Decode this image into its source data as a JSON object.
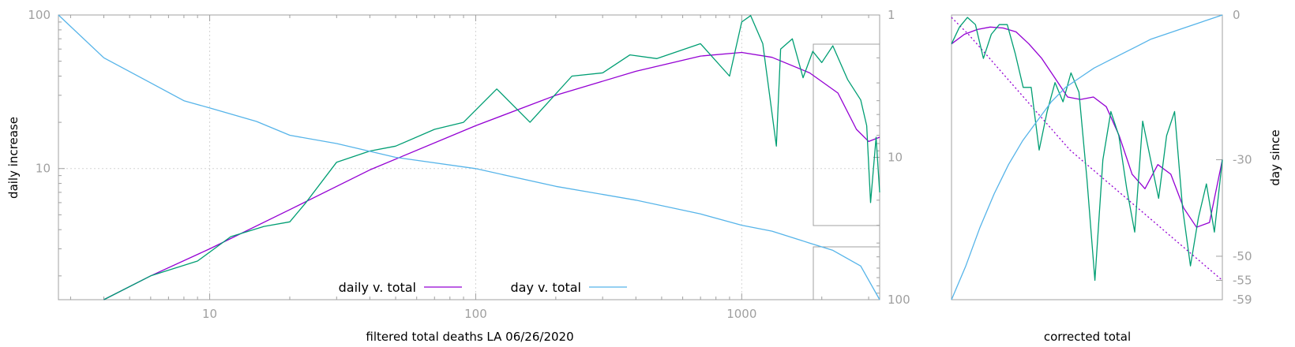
{
  "chart_data": [
    {
      "type": "line",
      "xlabel": "filtered total deaths LA 06/26/2020",
      "ylabel": "daily increase",
      "x_scale": "log",
      "xlim": [
        2.7,
        3300
      ],
      "ylim": [
        1.4,
        100
      ],
      "y2_scale": "log",
      "y2lim": [
        1,
        100
      ],
      "y2_reversed": true,
      "grid": true,
      "legend_placement": "bottom-center",
      "x_ticks": [
        "10",
        "100",
        "1000"
      ],
      "y_ticks": [
        "100",
        "10"
      ],
      "y2_ticks": [
        "1",
        "10",
        "100"
      ],
      "series": [
        {
          "name": "daily v. total",
          "color": "#9400d3",
          "axis": "y",
          "x": [
            4,
            6,
            10,
            20,
            40,
            100,
            200,
            400,
            700,
            1000,
            1300,
            1800,
            2300,
            2700,
            3000,
            3300
          ],
          "y": [
            1.4,
            2.0,
            3.0,
            5.4,
            9.8,
            19,
            30,
            43,
            54,
            57,
            53,
            42,
            31,
            18,
            15,
            16
          ]
        },
        {
          "name": "",
          "color": "#009e73",
          "axis": "y",
          "x": [
            4,
            6,
            9,
            12,
            16,
            20,
            23,
            30,
            40,
            50,
            70,
            90,
            120,
            160,
            230,
            300,
            380,
            480,
            700,
            900,
            1000,
            1080,
            1200,
            1350,
            1400,
            1550,
            1700,
            1850,
            2000,
            2200,
            2500,
            2800,
            2950,
            3050,
            3200,
            3300
          ],
          "y": [
            1.4,
            2.0,
            2.5,
            3.6,
            4.2,
            4.5,
            6.0,
            11,
            13,
            14,
            18,
            20,
            33,
            20,
            40,
            42,
            55,
            52,
            65,
            40,
            90,
            99,
            65,
            14,
            60,
            70,
            39,
            58,
            49,
            63,
            38,
            28,
            19,
            6,
            16,
            7
          ]
        },
        {
          "name": "day v. total",
          "color": "#56b4e9",
          "axis": "y2",
          "x": [
            2.7,
            4,
            6,
            8,
            10,
            15,
            20,
            30,
            50,
            100,
            200,
            400,
            700,
            1000,
            1300,
            1800,
            2200,
            2800,
            3300
          ],
          "y": [
            1,
            2,
            3,
            4,
            4.5,
            5.6,
            7,
            8,
            10,
            12,
            16,
            20,
            25,
            30,
            33,
            40,
            45,
            58,
            100
          ]
        }
      ]
    },
    {
      "type": "line",
      "xlabel": "corrected total",
      "ylabel": "day since",
      "y_ticks": [
        "0",
        "-30",
        "-50",
        "-55",
        "-59"
      ],
      "ylim": [
        -59,
        0
      ],
      "series": [
        {
          "name": "",
          "color": "#9400d3",
          "style": "solid",
          "y": [
            -6,
            -4,
            -3,
            -2.5,
            -2.7,
            -3.5,
            -6,
            -9,
            -13,
            -17,
            -17.5,
            -17,
            -19,
            -25,
            -33,
            -36,
            -31,
            -33,
            -40,
            -44,
            -43,
            -30
          ]
        },
        {
          "name": "",
          "color": "#9400d3",
          "style": "dotted",
          "y": [
            -0.5,
            -4,
            -8,
            -12,
            -16,
            -20,
            -24,
            -28,
            -31,
            -34,
            -37,
            -40,
            -43,
            -46,
            -49,
            -52,
            -55
          ]
        },
        {
          "name": "",
          "color": "#009e73",
          "style": "solid",
          "y": [
            -6,
            -2.5,
            -0.5,
            -2,
            -9,
            -4,
            -2,
            -2,
            -8,
            -15,
            -15,
            -28,
            -20,
            -14,
            -18,
            -12,
            -16,
            -34,
            -55,
            -30,
            -20,
            -25,
            -36,
            -45,
            -22,
            -30,
            -38,
            -25,
            -20,
            -40,
            -52,
            -42,
            -35,
            -45,
            -30
          ]
        },
        {
          "name": "",
          "color": "#56b4e9",
          "style": "solid",
          "y": [
            -59,
            -52,
            -44,
            -37,
            -31,
            -26,
            -22,
            -18,
            -15,
            -13,
            -11,
            -9.5,
            -8,
            -6.5,
            -5,
            -4,
            -3,
            -2,
            -1,
            0
          ]
        }
      ]
    }
  ],
  "legend": {
    "daily_label": "daily v. total",
    "day_label": "day v. total"
  }
}
